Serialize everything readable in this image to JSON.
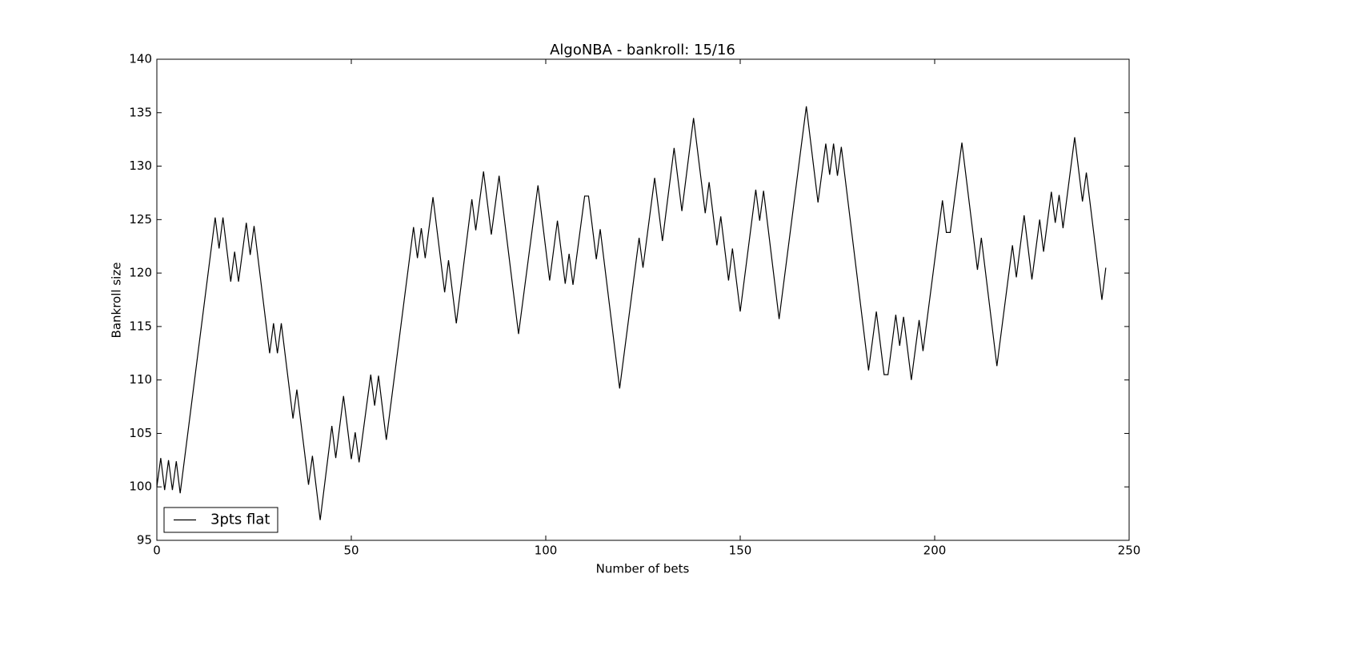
{
  "chart_data": {
    "type": "line",
    "title": "AlgoNBA - bankroll: 15/16",
    "x_label": "Number of bets",
    "y_label": "Bankroll size",
    "x": [
      0,
      1,
      2,
      3,
      4,
      5,
      6,
      15,
      16,
      17,
      19,
      20,
      21,
      23,
      24,
      25,
      29,
      30,
      31,
      32,
      35,
      36,
      39,
      40,
      42,
      45,
      46,
      48,
      50,
      51,
      52,
      55,
      56,
      57,
      59,
      66,
      67,
      68,
      69,
      71,
      74,
      75,
      77,
      81,
      82,
      84,
      86,
      88,
      93,
      98,
      101,
      103,
      105,
      106,
      107,
      110,
      111,
      113,
      114,
      119,
      124,
      125,
      128,
      130,
      133,
      135,
      138,
      141,
      142,
      144,
      145,
      147,
      148,
      150,
      154,
      155,
      156,
      160,
      167,
      170,
      172,
      173,
      174,
      175,
      176,
      183,
      185,
      187,
      188,
      190,
      191,
      192,
      194,
      196,
      197,
      202,
      203,
      204,
      207,
      211,
      212,
      216,
      220,
      221,
      223,
      225,
      227,
      228,
      230,
      231,
      232,
      233,
      236,
      238,
      239,
      243,
      244
    ],
    "series": [
      {
        "name": "3pts flat",
        "color": "#000000",
        "values": [
          100,
          102.7,
          99.7,
          102.5,
          99.7,
          102.4,
          99.4,
          125.2,
          122.3,
          125.2,
          119.2,
          122.0,
          119.2,
          124.7,
          121.7,
          124.4,
          112.5,
          115.3,
          112.5,
          115.3,
          106.4,
          109.1,
          100.2,
          102.9,
          96.9,
          105.7,
          102.7,
          108.5,
          102.6,
          105.1,
          102.3,
          110.5,
          107.6,
          110.4,
          104.4,
          124.3,
          121.4,
          124.2,
          121.4,
          127.1,
          118.2,
          121.2,
          115.3,
          126.9,
          124.0,
          129.5,
          123.6,
          129.1,
          114.3,
          128.2,
          119.3,
          124.9,
          119.0,
          121.8,
          118.9,
          127.2,
          127.2,
          121.3,
          124.1,
          109.2,
          123.3,
          120.5,
          128.9,
          123.0,
          131.7,
          125.8,
          134.5,
          125.6,
          128.5,
          122.6,
          125.3,
          119.3,
          122.3,
          116.4,
          127.8,
          124.9,
          127.7,
          115.7,
          135.6,
          126.6,
          132.1,
          129.2,
          132.1,
          129.1,
          131.8,
          110.9,
          116.4,
          110.5,
          110.5,
          116.1,
          113.2,
          115.9,
          110.0,
          115.6,
          112.7,
          126.8,
          123.8,
          123.8,
          132.2,
          120.3,
          123.3,
          111.3,
          122.6,
          119.6,
          125.4,
          119.4,
          125.0,
          122.0,
          127.6,
          124.7,
          127.3,
          124.2,
          132.7,
          126.7,
          129.4,
          117.5,
          120.5
        ]
      }
    ],
    "xlim": [
      0,
      250
    ],
    "xticks": [
      0,
      50,
      100,
      150,
      200,
      250
    ],
    "ylim": [
      95,
      140
    ],
    "yticks": [
      95,
      100,
      105,
      110,
      115,
      120,
      125,
      130,
      135,
      140
    ],
    "legend": "lower left"
  }
}
